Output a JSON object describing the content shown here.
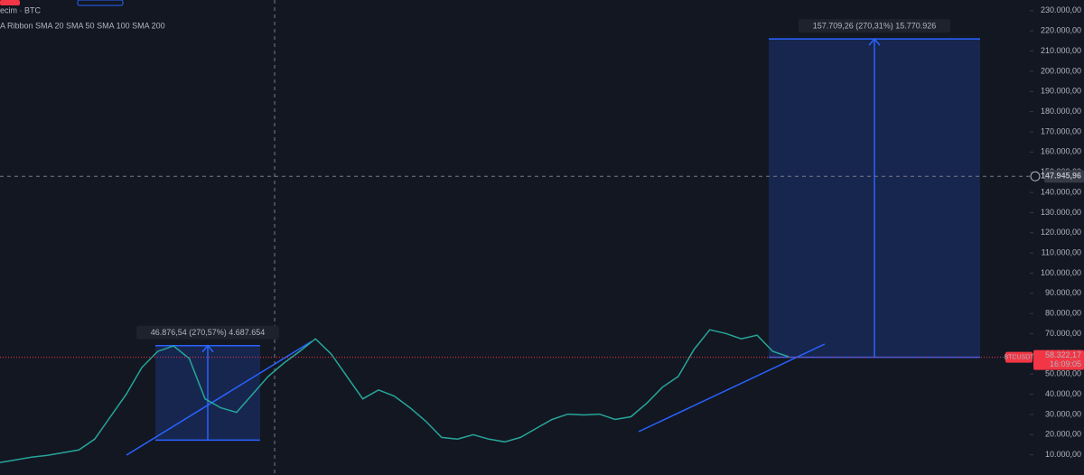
{
  "header": {
    "symbol": "ecim · BTC",
    "indicators": "A Ribbon SMA 20 SMA 50 SMA 100 SMA 200"
  },
  "chart_data": {
    "type": "line",
    "color": "#26a69a",
    "values": [
      6200,
      7530,
      8860,
      9750,
      11080,
      12410,
      17740,
      28840,
      39940,
      53260,
      61250,
      63920,
      57700,
      37720,
      33280,
      31060,
      39940,
      48820,
      55480,
      61250,
      67470,
      59920,
      48820,
      37720,
      42160,
      39050,
      33280,
      26620,
      18630,
      17740,
      19960,
      17740,
      16410,
      18630,
      23070,
      27510,
      30170,
      29730,
      30170,
      27510,
      28840,
      35500,
      43490,
      48820,
      62140,
      71910,
      70130,
      67470,
      69250,
      61250,
      58590
    ],
    "ylim": [
      0,
      235300
    ],
    "yticks": [
      {
        "value": 10000,
        "label": "10.000,00"
      },
      {
        "value": 20000,
        "label": "20.000,00"
      },
      {
        "value": 30000,
        "label": "30.000,00"
      },
      {
        "value": 40000,
        "label": "40.000,00"
      },
      {
        "value": 50000,
        "label": "50.000,00"
      },
      {
        "value": 60000,
        "label": "60.000,00"
      },
      {
        "value": 70000,
        "label": "70.000,00"
      },
      {
        "value": 80000,
        "label": "80.000,00"
      },
      {
        "value": 90000,
        "label": "90.000,00"
      },
      {
        "value": 100000,
        "label": "100.000,00"
      },
      {
        "value": 110000,
        "label": "110.000,00"
      },
      {
        "value": 120000,
        "label": "120.000,00"
      },
      {
        "value": 130000,
        "label": "130.000,00"
      },
      {
        "value": 140000,
        "label": "140.000,00"
      },
      {
        "value": 150000,
        "label": "150.000,00"
      },
      {
        "value": 160000,
        "label": "160.000,00"
      },
      {
        "value": 170000,
        "label": "170.000,00"
      },
      {
        "value": 180000,
        "label": "180.000,00"
      },
      {
        "value": 190000,
        "label": "190.000,00"
      },
      {
        "value": 200000,
        "label": "200.000,00"
      },
      {
        "value": 210000,
        "label": "210.000,00"
      },
      {
        "value": 220000,
        "label": "220.000,00"
      },
      {
        "value": 230000,
        "label": "230.000,00"
      }
    ],
    "crosshair": {
      "value": 147945.96,
      "label": "147.945,96"
    },
    "last_price": {
      "value": 58322.17,
      "label": "58.322,17",
      "symbol": "BTCUSDT",
      "countdown": "16:09:05",
      "color": "#f23645"
    },
    "annotations": [
      {
        "label": "46.876,54 (270,57%) 4.687.654",
        "low": 17300,
        "high": 64100
      },
      {
        "label": "157.709,26 (270,31%) 15.770.926",
        "low": 58300,
        "high": 216000
      }
    ]
  }
}
